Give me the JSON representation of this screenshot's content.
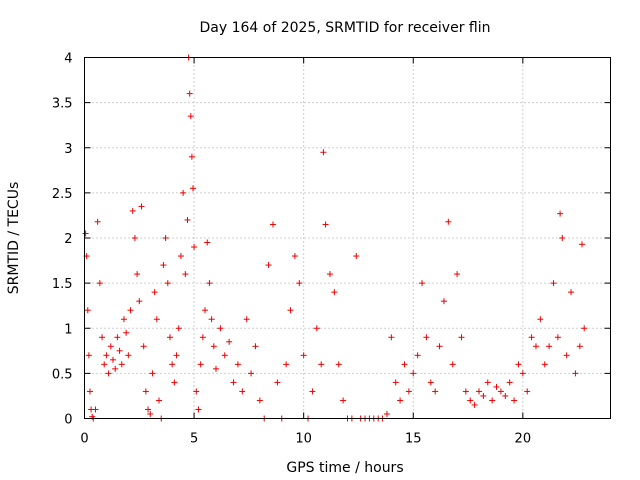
{
  "chart_data": {
    "type": "scatter",
    "title": "Day 164 of 2025, SRMTID for receiver flin",
    "xlabel": "GPS time / hours",
    "ylabel": "SRMTID / TECUs",
    "xlim": [
      0,
      24
    ],
    "ylim": [
      0,
      4
    ],
    "xticks": [
      0,
      5,
      10,
      15,
      20
    ],
    "xtick_labels": [
      "0",
      "5",
      "10",
      "15",
      "20"
    ],
    "yticks": [
      0,
      0.5,
      1,
      1.5,
      2,
      2.5,
      3,
      3.5,
      4
    ],
    "ytick_labels": [
      "0",
      "0.5",
      "1",
      "1.5",
      "2",
      "2.5",
      "3",
      "3.5",
      "4"
    ],
    "grid": true,
    "marker": "+",
    "color": "#ee0000",
    "series": [
      {
        "name": "SRMTID",
        "x": [
          0.05,
          0.1,
          0.15,
          0.2,
          0.25,
          0.3,
          0.35,
          0.4,
          0.5,
          0.6,
          0.7,
          0.8,
          0.9,
          1.0,
          1.1,
          1.2,
          1.3,
          1.4,
          1.5,
          1.6,
          1.7,
          1.8,
          1.9,
          2.0,
          2.1,
          2.2,
          2.3,
          2.4,
          2.5,
          2.6,
          2.7,
          2.8,
          2.9,
          3.0,
          3.1,
          3.2,
          3.3,
          3.4,
          3.5,
          3.6,
          3.7,
          3.8,
          3.9,
          4.0,
          4.1,
          4.2,
          4.3,
          4.4,
          4.5,
          4.6,
          4.7,
          4.75,
          4.8,
          4.85,
          4.9,
          4.95,
          5.0,
          5.1,
          5.2,
          5.3,
          5.4,
          5.5,
          5.6,
          5.7,
          5.8,
          5.9,
          6.0,
          6.2,
          6.4,
          6.6,
          6.8,
          7.0,
          7.2,
          7.4,
          7.6,
          7.8,
          8.0,
          8.2,
          8.4,
          8.6,
          8.8,
          9.0,
          9.2,
          9.4,
          9.6,
          9.8,
          10.0,
          10.2,
          10.4,
          10.6,
          10.8,
          10.9,
          11.0,
          11.2,
          11.4,
          11.6,
          11.8,
          12.0,
          12.2,
          12.4,
          12.6,
          12.8,
          13.0,
          13.2,
          13.4,
          13.6,
          13.8,
          14.0,
          14.2,
          14.4,
          14.6,
          14.8,
          15.0,
          15.2,
          15.4,
          15.6,
          15.8,
          16.0,
          16.2,
          16.4,
          16.6,
          16.8,
          17.0,
          17.2,
          17.4,
          17.6,
          17.8,
          18.0,
          18.2,
          18.4,
          18.6,
          18.8,
          19.0,
          19.2,
          19.4,
          19.6,
          19.8,
          20.0,
          20.2,
          20.4,
          20.6,
          20.8,
          21.0,
          21.2,
          21.4,
          21.6,
          21.7,
          21.8,
          22.0,
          22.2,
          22.4,
          22.6,
          22.7,
          22.8
        ],
        "y": [
          2.05,
          1.8,
          1.2,
          0.7,
          0.3,
          0.1,
          0.02,
          0.0,
          0.1,
          2.18,
          1.5,
          0.9,
          0.6,
          0.7,
          0.5,
          0.8,
          0.65,
          0.55,
          0.9,
          0.75,
          0.6,
          1.1,
          0.95,
          0.7,
          1.2,
          2.3,
          2.0,
          1.6,
          1.3,
          2.35,
          0.8,
          0.3,
          0.1,
          0.05,
          0.5,
          1.4,
          1.1,
          0.2,
          0.0,
          1.7,
          2.0,
          1.5,
          0.9,
          0.6,
          0.4,
          0.7,
          1.0,
          1.8,
          2.5,
          1.6,
          2.2,
          4.0,
          3.6,
          3.35,
          2.9,
          2.55,
          1.9,
          0.3,
          0.1,
          0.6,
          0.9,
          1.2,
          1.95,
          1.5,
          1.1,
          0.8,
          0.55,
          1.0,
          0.7,
          0.85,
          0.4,
          0.6,
          0.3,
          1.1,
          0.5,
          0.8,
          0.2,
          0.0,
          1.7,
          2.15,
          0.4,
          0.0,
          0.6,
          1.2,
          1.8,
          1.5,
          0.7,
          0.0,
          0.3,
          1.0,
          0.6,
          2.95,
          2.15,
          1.6,
          1.4,
          0.6,
          0.2,
          0.0,
          0.0,
          1.8,
          0.0,
          0.0,
          0.0,
          0.0,
          0.0,
          0.0,
          0.05,
          0.9,
          0.4,
          0.2,
          0.6,
          0.3,
          0.5,
          0.7,
          1.5,
          0.9,
          0.4,
          0.3,
          0.8,
          1.3,
          2.18,
          0.6,
          1.6,
          0.9,
          0.3,
          0.2,
          0.15,
          0.3,
          0.25,
          0.4,
          0.2,
          0.35,
          0.3,
          0.25,
          0.4,
          0.2,
          0.6,
          0.5,
          0.3,
          0.9,
          0.8,
          1.1,
          0.6,
          0.8,
          1.5,
          0.9,
          2.27,
          2.0,
          0.7,
          1.4,
          0.5,
          0.8,
          1.93,
          1.0
        ]
      }
    ]
  }
}
